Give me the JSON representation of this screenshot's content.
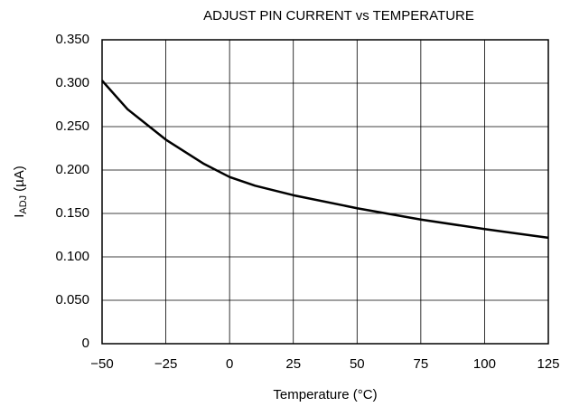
{
  "chart_data": {
    "type": "line",
    "title": "ADJUST PIN CURRENT vs TEMPERATURE",
    "x_label": "Temperature (°C)",
    "y_label": "I",
    "y_label_sub": "ADJ",
    "y_label_unit": "(µA)",
    "x": [
      -50,
      -40,
      -25,
      -10,
      0,
      10,
      25,
      50,
      75,
      100,
      125
    ],
    "series": [
      {
        "name": "IADJ",
        "color": "#000000",
        "values": [
          0.303,
          0.27,
          0.235,
          0.207,
          0.192,
          0.182,
          0.171,
          0.156,
          0.143,
          0.132,
          0.122
        ]
      }
    ],
    "xlim": [
      -50,
      125
    ],
    "ylim": [
      0,
      0.35
    ],
    "xticks": [
      {
        "value": -50,
        "label": "−50"
      },
      {
        "value": -25,
        "label": "−25"
      },
      0,
      25,
      50,
      75,
      100,
      125
    ],
    "yticks": [
      0,
      {
        "value": 0.05,
        "label": "0.050"
      },
      {
        "value": 0.1,
        "label": "0.100"
      },
      {
        "value": 0.15,
        "label": "0.150"
      },
      {
        "value": 0.2,
        "label": "0.200"
      },
      {
        "value": 0.25,
        "label": "0.250"
      },
      {
        "value": 0.3,
        "label": "0.300"
      },
      {
        "value": 0.35,
        "label": "0.350"
      }
    ],
    "grid": true
  }
}
